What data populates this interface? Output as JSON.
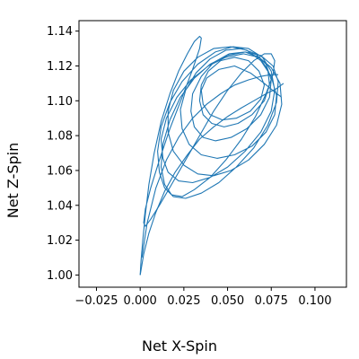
{
  "chart_data": {
    "type": "line",
    "title": "",
    "xlabel": "Net X-Spin",
    "ylabel": "Net Z-Spin",
    "xlim": [
      -0.035,
      0.118
    ],
    "ylim": [
      0.993,
      1.146
    ],
    "x_ticks": [
      "−0.025",
      "0.000",
      "0.025",
      "0.050",
      "0.075",
      "0.100"
    ],
    "x_tick_values": [
      -0.025,
      0.0,
      0.025,
      0.05,
      0.075,
      0.1
    ],
    "y_ticks": [
      "1.00",
      "1.02",
      "1.04",
      "1.06",
      "1.08",
      "1.10",
      "1.12",
      "1.14"
    ],
    "y_tick_values": [
      1.0,
      1.02,
      1.04,
      1.06,
      1.08,
      1.1,
      1.12,
      1.14
    ],
    "grid": false,
    "legend": "none",
    "series_color": "#1f77b4",
    "series": [
      {
        "x": [
          0.0,
          0.0005,
          0.0015,
          0.003,
          0.005,
          0.008,
          0.012,
          0.017,
          0.022,
          0.027,
          0.031,
          0.034,
          0.035,
          0.034,
          0.03,
          0.024,
          0.017,
          0.011,
          0.006,
          0.003,
          0.002,
          0.003,
          0.006,
          0.011,
          0.018,
          0.026,
          0.034,
          0.042,
          0.05,
          0.058,
          0.065,
          0.071,
          0.075,
          0.077,
          0.076,
          0.072,
          0.066,
          0.058,
          0.049,
          0.04,
          0.031,
          0.024,
          0.018,
          0.014,
          0.012,
          0.013,
          0.017,
          0.023,
          0.031,
          0.04,
          0.05,
          0.06,
          0.069,
          0.076,
          0.079,
          0.078,
          0.073,
          0.065,
          0.055,
          0.045,
          0.035,
          0.026,
          0.019,
          0.014,
          0.011,
          0.01,
          0.012,
          0.017,
          0.024,
          0.033,
          0.043,
          0.053,
          0.062,
          0.07,
          0.075,
          0.077,
          0.075,
          0.069,
          0.06,
          0.05,
          0.04,
          0.03,
          0.022,
          0.016,
          0.013,
          0.012,
          0.015,
          0.021,
          0.029,
          0.039,
          0.049,
          0.059,
          0.068,
          0.075,
          0.08,
          0.081,
          0.078,
          0.071,
          0.062,
          0.052,
          0.042,
          0.033,
          0.025,
          0.019,
          0.016,
          0.016,
          0.019,
          0.025,
          0.033,
          0.042,
          0.052,
          0.061,
          0.069,
          0.075,
          0.078,
          0.077,
          0.072,
          0.064,
          0.054,
          0.044,
          0.035,
          0.028,
          0.024,
          0.023,
          0.026,
          0.032,
          0.04,
          0.049,
          0.058,
          0.066,
          0.072,
          0.075,
          0.074,
          0.069,
          0.061,
          0.052,
          0.043,
          0.036,
          0.031,
          0.029,
          0.03,
          0.035,
          0.042,
          0.051,
          0.06,
          0.068,
          0.073,
          0.074,
          0.071,
          0.064,
          0.056,
          0.048,
          0.041,
          0.036,
          0.034,
          0.035,
          0.039,
          0.046,
          0.054,
          0.062,
          0.068,
          0.071,
          0.069,
          0.063,
          0.055,
          0.047,
          0.04,
          0.036,
          0.035,
          0.038,
          0.045,
          0.054,
          0.063,
          0.071,
          0.077,
          0.081
        ],
        "y": [
          1.0,
          1.008,
          1.02,
          1.035,
          1.052,
          1.07,
          1.088,
          1.104,
          1.117,
          1.127,
          1.134,
          1.137,
          1.136,
          1.13,
          1.118,
          1.102,
          1.084,
          1.066,
          1.05,
          1.038,
          1.03,
          1.028,
          1.032,
          1.04,
          1.052,
          1.066,
          1.08,
          1.094,
          1.106,
          1.116,
          1.123,
          1.127,
          1.127,
          1.123,
          1.115,
          1.104,
          1.091,
          1.078,
          1.066,
          1.056,
          1.049,
          1.045,
          1.046,
          1.052,
          1.062,
          1.075,
          1.089,
          1.102,
          1.113,
          1.121,
          1.126,
          1.128,
          1.126,
          1.12,
          1.111,
          1.099,
          1.086,
          1.073,
          1.062,
          1.053,
          1.047,
          1.044,
          1.045,
          1.05,
          1.059,
          1.071,
          1.085,
          1.099,
          1.111,
          1.121,
          1.128,
          1.131,
          1.13,
          1.125,
          1.117,
          1.106,
          1.094,
          1.082,
          1.071,
          1.062,
          1.056,
          1.053,
          1.054,
          1.059,
          1.067,
          1.078,
          1.09,
          1.102,
          1.112,
          1.12,
          1.125,
          1.127,
          1.125,
          1.119,
          1.11,
          1.098,
          1.086,
          1.075,
          1.066,
          1.06,
          1.057,
          1.058,
          1.063,
          1.071,
          1.082,
          1.094,
          1.106,
          1.117,
          1.125,
          1.13,
          1.131,
          1.129,
          1.123,
          1.114,
          1.103,
          1.092,
          1.082,
          1.074,
          1.069,
          1.067,
          1.069,
          1.075,
          1.084,
          1.095,
          1.106,
          1.116,
          1.124,
          1.129,
          1.13,
          1.127,
          1.121,
          1.112,
          1.102,
          1.092,
          1.084,
          1.079,
          1.077,
          1.079,
          1.085,
          1.094,
          1.104,
          1.114,
          1.122,
          1.127,
          1.128,
          1.125,
          1.118,
          1.109,
          1.1,
          1.092,
          1.087,
          1.085,
          1.087,
          1.092,
          1.1,
          1.109,
          1.117,
          1.123,
          1.125,
          1.123,
          1.117,
          1.109,
          1.101,
          1.094,
          1.09,
          1.089,
          1.092,
          1.098,
          1.106,
          1.113,
          1.118,
          1.12,
          1.116,
          1.11,
          1.105,
          1.102
        ]
      },
      {
        "x": [
          0.0,
          0.002,
          0.005,
          0.009,
          0.014,
          0.02,
          0.027,
          0.034,
          0.042,
          0.05,
          0.058,
          0.065,
          0.072,
          0.078,
          0.082
        ],
        "y": [
          1.0,
          1.012,
          1.024,
          1.036,
          1.048,
          1.059,
          1.069,
          1.078,
          1.085,
          1.091,
          1.096,
          1.1,
          1.104,
          1.107,
          1.11
        ]
      },
      {
        "x": [
          0.001,
          0.004,
          0.009,
          0.015,
          0.022,
          0.03,
          0.038,
          0.046,
          0.054,
          0.062,
          0.069,
          0.075,
          0.079
        ],
        "y": [
          1.01,
          1.03,
          1.05,
          1.066,
          1.079,
          1.09,
          1.098,
          1.104,
          1.109,
          1.112,
          1.114,
          1.115,
          1.115
        ]
      }
    ]
  }
}
